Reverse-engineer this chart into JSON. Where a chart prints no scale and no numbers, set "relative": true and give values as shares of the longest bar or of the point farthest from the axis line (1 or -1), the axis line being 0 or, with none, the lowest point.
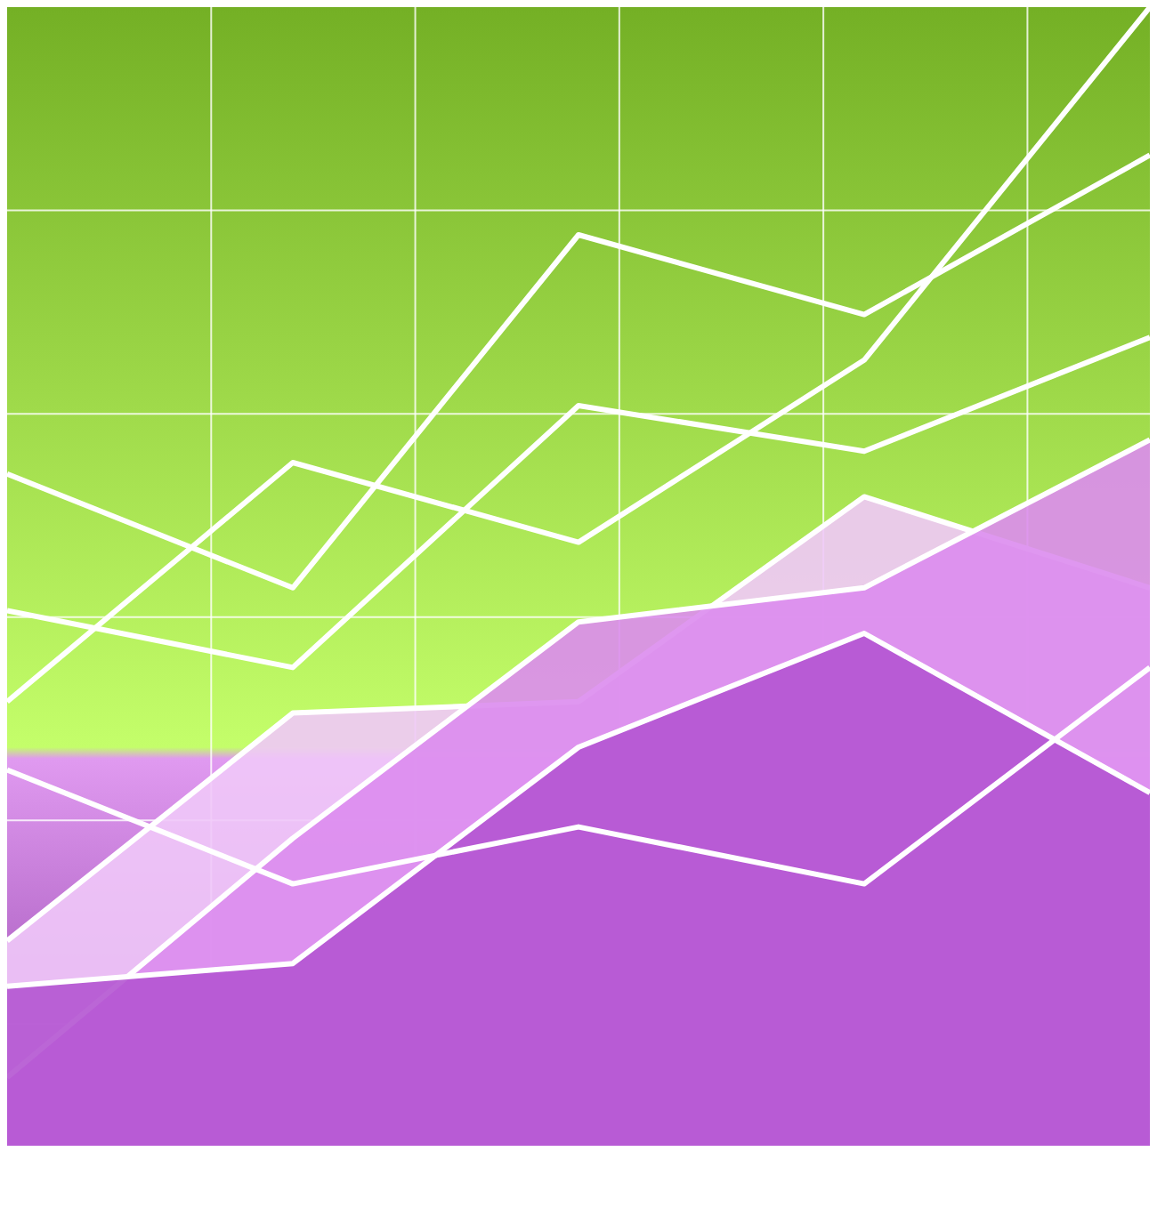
{
  "chart_data": {
    "type": "line",
    "relative": true,
    "grid": true,
    "categories": [
      null,
      null,
      null,
      null,
      null
    ],
    "series": [
      {
        "type": "area",
        "color": "#f0c8f8",
        "values": [
          0.18,
          0.38,
          0.39,
          0.57,
          0.49
        ]
      },
      {
        "type": "area",
        "color": "#dc8cee",
        "values": [
          0.06,
          0.27,
          0.46,
          0.49,
          0.62
        ]
      },
      {
        "type": "area",
        "color": "#b455d2",
        "values": [
          0.14,
          0.16,
          0.35,
          0.45,
          0.31
        ]
      },
      {
        "color": "#ffffff",
        "values": [
          0.33,
          0.23,
          0.28,
          0.23,
          0.42
        ]
      },
      {
        "color": "#ffffff",
        "values": [
          0.59,
          0.49,
          0.8,
          0.73,
          0.87
        ]
      },
      {
        "color": "#ffffff",
        "values": [
          0.39,
          0.6,
          0.53,
          0.69,
          1
        ]
      },
      {
        "color": "#ffffff",
        "values": [
          0.47,
          0.42,
          0.65,
          0.61,
          0.71
        ]
      }
    ]
  }
}
